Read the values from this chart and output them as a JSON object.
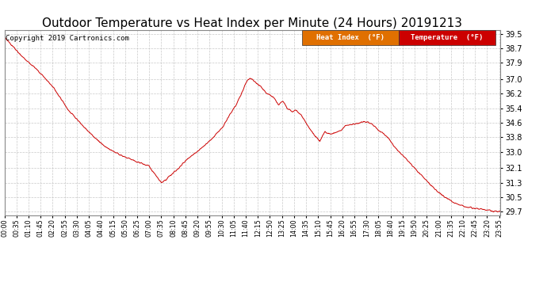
{
  "title": "Outdoor Temperature vs Heat Index per Minute (24 Hours) 20191213",
  "copyright": "Copyright 2019 Cartronics.com",
  "ylim": [
    29.5,
    39.7
  ],
  "yticks": [
    29.7,
    30.5,
    31.3,
    32.1,
    33.0,
    33.8,
    34.6,
    35.4,
    36.2,
    37.0,
    37.9,
    38.7,
    39.5
  ],
  "line_color": "#cc0000",
  "background_color": "#ffffff",
  "grid_color": "#bbbbbb",
  "title_fontsize": 11,
  "copyright_fontsize": 6.5,
  "tick_interval": 35,
  "waypoints_min": [
    0,
    20,
    50,
    90,
    140,
    190,
    240,
    290,
    340,
    380,
    420,
    455,
    470,
    500,
    530,
    565,
    600,
    635,
    655,
    675,
    690,
    700,
    712,
    720,
    730,
    742,
    752,
    762,
    770,
    778,
    785,
    795,
    808,
    820,
    835,
    848,
    860,
    872,
    885,
    900,
    915,
    930,
    945,
    960,
    975,
    990,
    1005,
    1020,
    1035,
    1050,
    1065,
    1075,
    1085,
    1100,
    1115,
    1135,
    1160,
    1185,
    1210,
    1240,
    1270,
    1305,
    1340,
    1375,
    1405,
    1425,
    1439
  ],
  "waypoints_temp": [
    39.3,
    38.9,
    38.3,
    37.6,
    36.6,
    35.2,
    34.2,
    33.3,
    32.8,
    32.5,
    32.2,
    31.3,
    31.5,
    32.0,
    32.6,
    33.1,
    33.7,
    34.4,
    35.1,
    35.7,
    36.3,
    36.8,
    37.05,
    37.0,
    36.8,
    36.65,
    36.4,
    36.2,
    36.15,
    36.05,
    35.9,
    35.6,
    35.8,
    35.4,
    35.2,
    35.3,
    35.05,
    34.7,
    34.3,
    33.9,
    33.6,
    34.1,
    33.95,
    34.05,
    34.15,
    34.45,
    34.5,
    34.55,
    34.62,
    34.65,
    34.55,
    34.4,
    34.2,
    34.0,
    33.7,
    33.2,
    32.7,
    32.2,
    31.7,
    31.1,
    30.6,
    30.2,
    29.95,
    29.85,
    29.78,
    29.73,
    29.72
  ]
}
